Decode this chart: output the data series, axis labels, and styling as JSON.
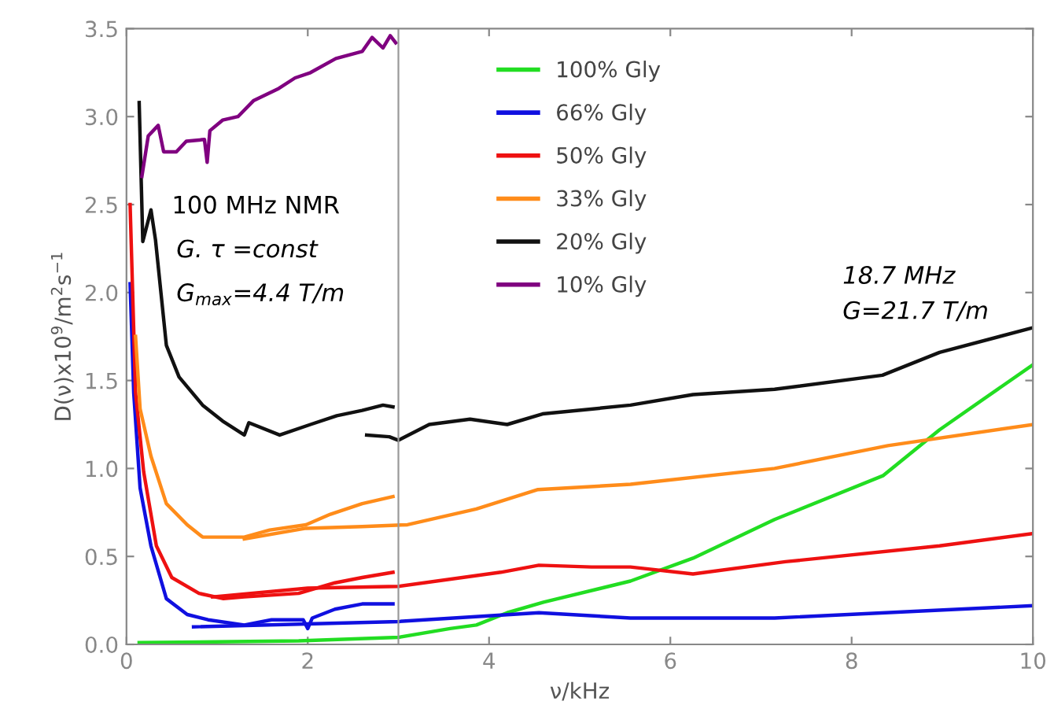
{
  "chart_data": {
    "type": "line",
    "xlabel": "ν/kHz",
    "ylabel": "D(ν)x10$^{9}$/m$^{2}$s$^{−1}$",
    "xlim": [
      0,
      10
    ],
    "ylim": [
      0,
      3.5
    ],
    "xticks": [
      0,
      2,
      4,
      6,
      8,
      10
    ],
    "yticks": [
      {
        "value": 0,
        "label": "0.0"
      },
      0.5,
      {
        "value": 1,
        "label": "1.0"
      },
      1.5,
      {
        "value": 2,
        "label": "2.0"
      },
      2.5,
      {
        "value": 3,
        "label": "3.0"
      },
      3.5
    ],
    "grid": false,
    "legend": "top",
    "marker": "none",
    "line_style": "solid",
    "ref_lines": [
      {
        "axis": "x",
        "value": 3,
        "color": "#999999"
      }
    ],
    "annotations": [
      "100 MHz NMR",
      "G. τ =const",
      "G$_{max}$=4.4 T/m",
      "18.7 MHz",
      "G=21.7 T/m"
    ],
    "series": [
      {
        "name": "100% Gly",
        "color": "#22dd22",
        "x": [
          0.14,
          1.9,
          3.0,
          3.57,
          3.86,
          4.2,
          4.6,
          5.56,
          6.25,
          7.15,
          8.35,
          8.97,
          10
        ],
        "values": [
          0.01,
          0.02,
          0.04,
          0.09,
          0.11,
          0.18,
          0.24,
          0.36,
          0.49,
          0.71,
          0.96,
          1.22,
          1.59
        ]
      },
      {
        "name": "66% Gly",
        "color": "#1010e0",
        "x": [
          0.04,
          0.08,
          0.15,
          0.27,
          0.44,
          0.67,
          0.9,
          1.3,
          1.6,
          1.95,
          2.0,
          2.05,
          2.3,
          2.6,
          2.94
        ],
        "values": [
          2.05,
          1.43,
          0.89,
          0.56,
          0.26,
          0.17,
          0.14,
          0.11,
          0.14,
          0.14,
          0.09,
          0.15,
          0.2,
          0.23,
          0.23
        ]
      },
      {
        "color": "#1010e0",
        "x": [
          0.74,
          3.0,
          4.55,
          5.56,
          7.15,
          10
        ],
        "values": [
          0.1,
          0.13,
          0.18,
          0.15,
          0.15,
          0.22
        ]
      },
      {
        "name": "50% Gly",
        "color": "#ee1111",
        "x": [
          0.04,
          0.1,
          0.19,
          0.33,
          0.5,
          0.8,
          1.07,
          1.3,
          1.9,
          2.3,
          2.6,
          2.94
        ],
        "values": [
          2.5,
          1.43,
          0.98,
          0.56,
          0.38,
          0.29,
          0.26,
          0.27,
          0.29,
          0.35,
          0.38,
          0.41
        ]
      },
      {
        "color": "#ee1111",
        "x": [
          0.95,
          2.0,
          3.0,
          4.13,
          4.55,
          5.13,
          5.56,
          6.25,
          7.27,
          8.97,
          10
        ],
        "values": [
          0.27,
          0.32,
          0.33,
          0.41,
          0.45,
          0.44,
          0.44,
          0.4,
          0.47,
          0.56,
          0.63
        ]
      },
      {
        "name": "33% Gly",
        "color": "#ff8c1a",
        "x": [
          0.1,
          0.15,
          0.27,
          0.44,
          0.67,
          0.84,
          1.07,
          1.3,
          1.58,
          1.98,
          2.25,
          2.6,
          2.94
        ],
        "values": [
          1.75,
          1.34,
          1.07,
          0.8,
          0.68,
          0.61,
          0.61,
          0.61,
          0.65,
          0.68,
          0.74,
          0.8,
          0.84
        ]
      },
      {
        "color": "#ff8c1a",
        "x": [
          1.3,
          1.98,
          2.6,
          3.1,
          3.86,
          4.54,
          5.56,
          7.15,
          8.4,
          10
        ],
        "values": [
          0.6,
          0.66,
          0.67,
          0.68,
          0.77,
          0.88,
          0.91,
          1.0,
          1.13,
          1.25
        ]
      },
      {
        "name": "20% Gly",
        "color": "#111111",
        "x": [
          0.14,
          0.18,
          0.27,
          0.32,
          0.44,
          0.58,
          0.84,
          1.06,
          1.3,
          1.35,
          1.69,
          2.03,
          2.32,
          2.6,
          2.83,
          2.94
        ],
        "values": [
          3.08,
          2.29,
          2.47,
          2.3,
          1.7,
          1.52,
          1.36,
          1.27,
          1.19,
          1.26,
          1.19,
          1.25,
          1.3,
          1.33,
          1.36,
          1.35
        ]
      },
      {
        "color": "#111111",
        "x": [
          2.65,
          2.9,
          3.0,
          3.34,
          3.79,
          4.2,
          4.59,
          5.56,
          6.25,
          7.15,
          8.34,
          8.97,
          10
        ],
        "values": [
          1.19,
          1.18,
          1.16,
          1.25,
          1.28,
          1.25,
          1.31,
          1.36,
          1.42,
          1.45,
          1.53,
          1.66,
          1.8
        ]
      },
      {
        "name": "10% Gly",
        "color": "#800080",
        "x": [
          0.17,
          0.24,
          0.35,
          0.41,
          0.55,
          0.66,
          0.86,
          0.89,
          0.92,
          1.06,
          1.23,
          1.4,
          1.68,
          1.86,
          2.03,
          2.31,
          2.6,
          2.71,
          2.83,
          2.91,
          2.97
        ],
        "values": [
          2.66,
          2.89,
          2.95,
          2.8,
          2.8,
          2.86,
          2.87,
          2.74,
          2.92,
          2.98,
          3.0,
          3.09,
          3.16,
          3.22,
          3.25,
          3.33,
          3.37,
          3.45,
          3.39,
          3.46,
          3.42
        ]
      }
    ]
  }
}
